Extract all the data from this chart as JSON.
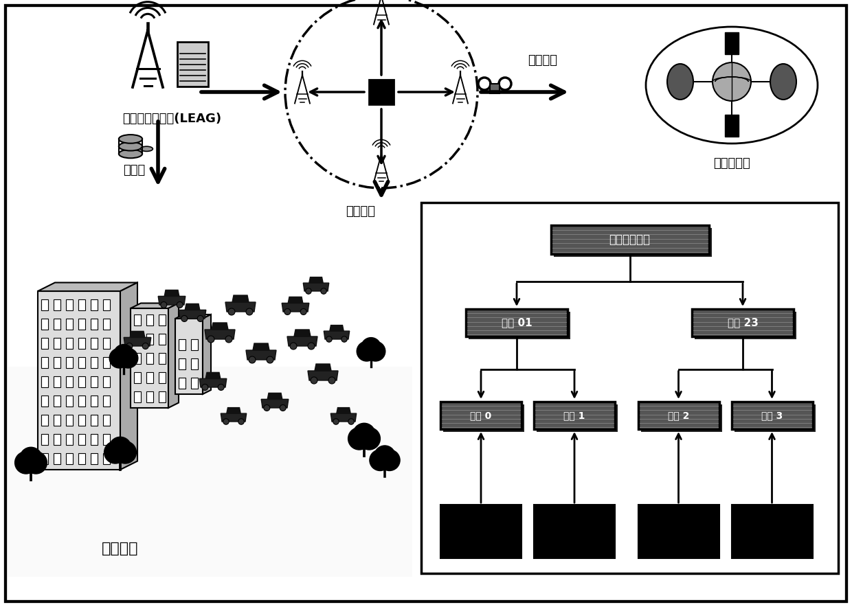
{
  "bg_color": "#ffffff",
  "leag_label": "当地能源聚合器(LEAG)",
  "energy_label": "能源币",
  "consensus_label": "共识机制",
  "new_block_label": "新建区块",
  "alliance_label": "联盟区块链",
  "demand_label": "需求响应",
  "root_label": "根节点哈希値",
  "hash01_label": "哈希 01",
  "hash23_label": "哈希 23",
  "hash0_label": "哈希 0",
  "hash1_label": "哈希 1",
  "hash2_label": "哈希 2",
  "hash3_label": "哈希 3"
}
